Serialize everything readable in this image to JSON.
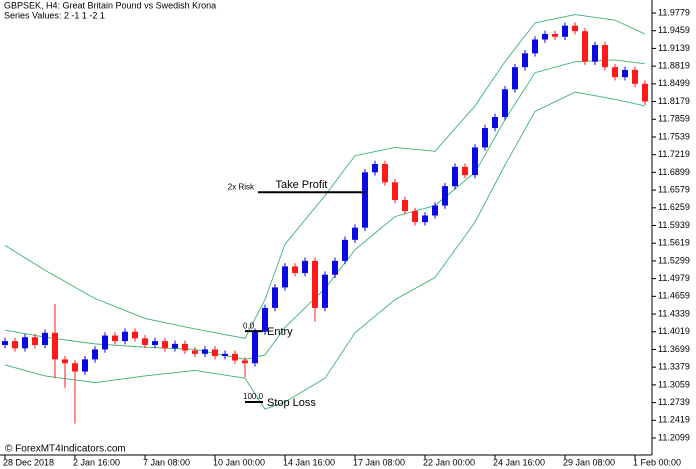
{
  "header": {
    "title": "GBPSEK, H4:  Great Britain Pound vs Swedish Krona",
    "subtitle": "Series Values: 2 -1 1 -2 1"
  },
  "footer": {
    "text": "© ForexMT4Indicators.com"
  },
  "chart_data": {
    "type": "candlestick",
    "categories": [
      "28 Dec 2018",
      null,
      null,
      null,
      null,
      null,
      null,
      "2 Jan 16:00",
      null,
      null,
      null,
      null,
      null,
      null,
      "7 Jan 08:00",
      null,
      null,
      null,
      null,
      null,
      null,
      "10 Jan 00:00",
      null,
      null,
      null,
      null,
      null,
      null,
      "14 Jan 16:00",
      null,
      null,
      null,
      null,
      null,
      null,
      "17 Jan 08:00",
      null,
      null,
      null,
      null,
      null,
      null,
      "22 Jan 00:00",
      null,
      null,
      null,
      null,
      null,
      null,
      "24 Jan 16:00",
      null,
      null,
      null,
      null,
      null,
      null,
      "29 Jan 08:00",
      null,
      null,
      null,
      null,
      null,
      null,
      "1 Feb 00:00",
      null
    ],
    "open": [
      11.378,
      11.385,
      11.372,
      11.392,
      11.378,
      11.4,
      11.352,
      11.345,
      11.33,
      11.352,
      11.37,
      11.395,
      11.385,
      11.402,
      11.39,
      11.378,
      11.385,
      11.372,
      11.38,
      11.368,
      11.362,
      11.37,
      11.358,
      11.362,
      11.35,
      11.345,
      11.402,
      11.445,
      11.482,
      11.52,
      11.508,
      11.53,
      11.445,
      11.505,
      11.53,
      11.568,
      11.59,
      11.69,
      11.705,
      11.672,
      11.64,
      11.62,
      11.6,
      11.612,
      11.63,
      11.665,
      11.7,
      11.685,
      11.735,
      11.77,
      11.79,
      11.84,
      11.88,
      11.905,
      11.93,
      11.94,
      11.935,
      11.955,
      11.945,
      11.89,
      11.92,
      11.88,
      11.862,
      11.875,
      11.85
    ],
    "high": [
      11.391,
      11.391,
      11.398,
      11.398,
      11.406,
      11.452,
      11.358,
      11.351,
      11.358,
      11.376,
      11.401,
      11.401,
      11.408,
      11.408,
      11.396,
      11.391,
      11.391,
      11.386,
      11.386,
      11.374,
      11.376,
      11.376,
      11.368,
      11.368,
      11.356,
      11.408,
      11.451,
      11.488,
      11.526,
      11.526,
      11.536,
      11.536,
      11.511,
      11.536,
      11.574,
      11.596,
      11.696,
      11.711,
      11.711,
      11.678,
      11.646,
      11.626,
      11.618,
      11.636,
      11.671,
      11.706,
      11.706,
      11.741,
      11.776,
      11.796,
      11.846,
      11.886,
      11.911,
      11.936,
      11.946,
      11.946,
      11.961,
      11.961,
      11.951,
      11.926,
      11.926,
      11.886,
      11.881,
      11.881,
      11.856
    ],
    "low": [
      11.372,
      11.366,
      11.366,
      11.372,
      11.372,
      11.318,
      11.3,
      11.236,
      11.324,
      11.346,
      11.364,
      11.379,
      11.379,
      11.384,
      11.372,
      11.372,
      11.366,
      11.366,
      11.362,
      11.356,
      11.356,
      11.352,
      11.352,
      11.344,
      11.32,
      11.339,
      11.396,
      11.439,
      11.476,
      11.502,
      11.502,
      11.42,
      11.439,
      11.499,
      11.524,
      11.562,
      11.584,
      11.684,
      11.666,
      11.634,
      11.614,
      11.594,
      11.594,
      11.606,
      11.624,
      11.659,
      11.679,
      11.679,
      11.729,
      11.764,
      11.784,
      11.834,
      11.874,
      11.899,
      11.924,
      11.929,
      11.929,
      11.939,
      11.884,
      11.884,
      11.874,
      11.856,
      11.856,
      11.844,
      11.812
    ],
    "close": [
      11.385,
      11.372,
      11.392,
      11.378,
      11.4,
      11.352,
      11.345,
      11.33,
      11.352,
      11.37,
      11.395,
      11.385,
      11.402,
      11.39,
      11.378,
      11.385,
      11.372,
      11.38,
      11.368,
      11.362,
      11.37,
      11.358,
      11.362,
      11.35,
      11.345,
      11.402,
      11.445,
      11.482,
      11.52,
      11.508,
      11.53,
      11.445,
      11.505,
      11.53,
      11.568,
      11.59,
      11.69,
      11.705,
      11.672,
      11.64,
      11.62,
      11.6,
      11.612,
      11.63,
      11.665,
      11.7,
      11.685,
      11.735,
      11.77,
      11.79,
      11.84,
      11.88,
      11.905,
      11.93,
      11.94,
      11.935,
      11.955,
      11.945,
      11.89,
      11.92,
      11.88,
      11.862,
      11.875,
      11.85,
      11.818
    ],
    "up_color": "#0a0adf",
    "down_color": "#ff1a1a",
    "bands": {
      "color": "#3cb371",
      "x": [
        0,
        4,
        9,
        14,
        19,
        24,
        26,
        28,
        32,
        35,
        39,
        43,
        47,
        50,
        53,
        57,
        61,
        64
      ],
      "upper": [
        11.558,
        11.513,
        11.462,
        11.426,
        11.407,
        11.39,
        11.46,
        11.56,
        11.648,
        11.72,
        11.735,
        11.728,
        11.81,
        11.89,
        11.96,
        11.975,
        11.965,
        11.94
      ],
      "middle": [
        11.405,
        11.392,
        11.38,
        11.374,
        11.37,
        11.352,
        11.36,
        11.41,
        11.48,
        11.55,
        11.61,
        11.63,
        11.69,
        11.785,
        11.87,
        11.89,
        11.893,
        11.886
      ],
      "lower": [
        11.342,
        11.322,
        11.31,
        11.322,
        11.332,
        11.318,
        11.262,
        11.275,
        11.318,
        11.4,
        11.46,
        11.5,
        11.6,
        11.703,
        11.8,
        11.835,
        11.822,
        11.81
      ]
    },
    "levels": [
      {
        "label": "Take Profit",
        "tag": "2x Risk",
        "value": 11.654
      },
      {
        "label": "Entry",
        "tag": "0.0",
        "value": 11.403
      },
      {
        "label": "Stop Loss",
        "tag": "100.0",
        "value": 11.275
      }
    ],
    "ylim": [
      11.1792,
      12.0014
    ],
    "yticks": [
      11.9779,
      11.9459,
      11.9139,
      11.8819,
      11.8499,
      11.8179,
      11.7859,
      11.7539,
      11.7219,
      11.6899,
      11.6579,
      11.6259,
      11.5939,
      11.5619,
      11.5299,
      11.4979,
      11.4659,
      11.4339,
      11.4019,
      11.3699,
      11.3379,
      11.3059,
      11.2739,
      11.2419,
      11.2099
    ]
  }
}
